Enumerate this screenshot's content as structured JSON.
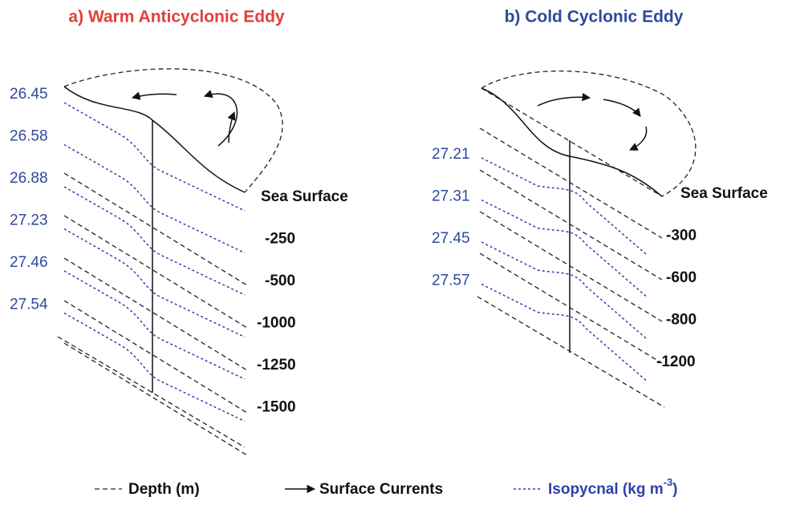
{
  "panels": [
    {
      "title": "a) Warm Anticyclonic Eddy",
      "isopycnals": [
        "26.45",
        "26.58",
        "26.88",
        "27.23",
        "27.46",
        "27.54"
      ],
      "depths": [
        "Sea Surface",
        "-250",
        "-500",
        "-1000",
        "-1250",
        "-1500"
      ]
    },
    {
      "title": "b) Cold Cyclonic Eddy",
      "isopycnals": [
        "27.21",
        "27.31",
        "27.45",
        "27.57"
      ],
      "depths": [
        "Sea Surface",
        "-300",
        "-600",
        "-800",
        "-1200"
      ]
    }
  ],
  "legend": {
    "depth": "Depth (m)",
    "currents": "Surface Currents",
    "isopycnal": "Isopycnal (kg m",
    "isopycnal_sup": "-3",
    "isopycnal_end": ")"
  }
}
